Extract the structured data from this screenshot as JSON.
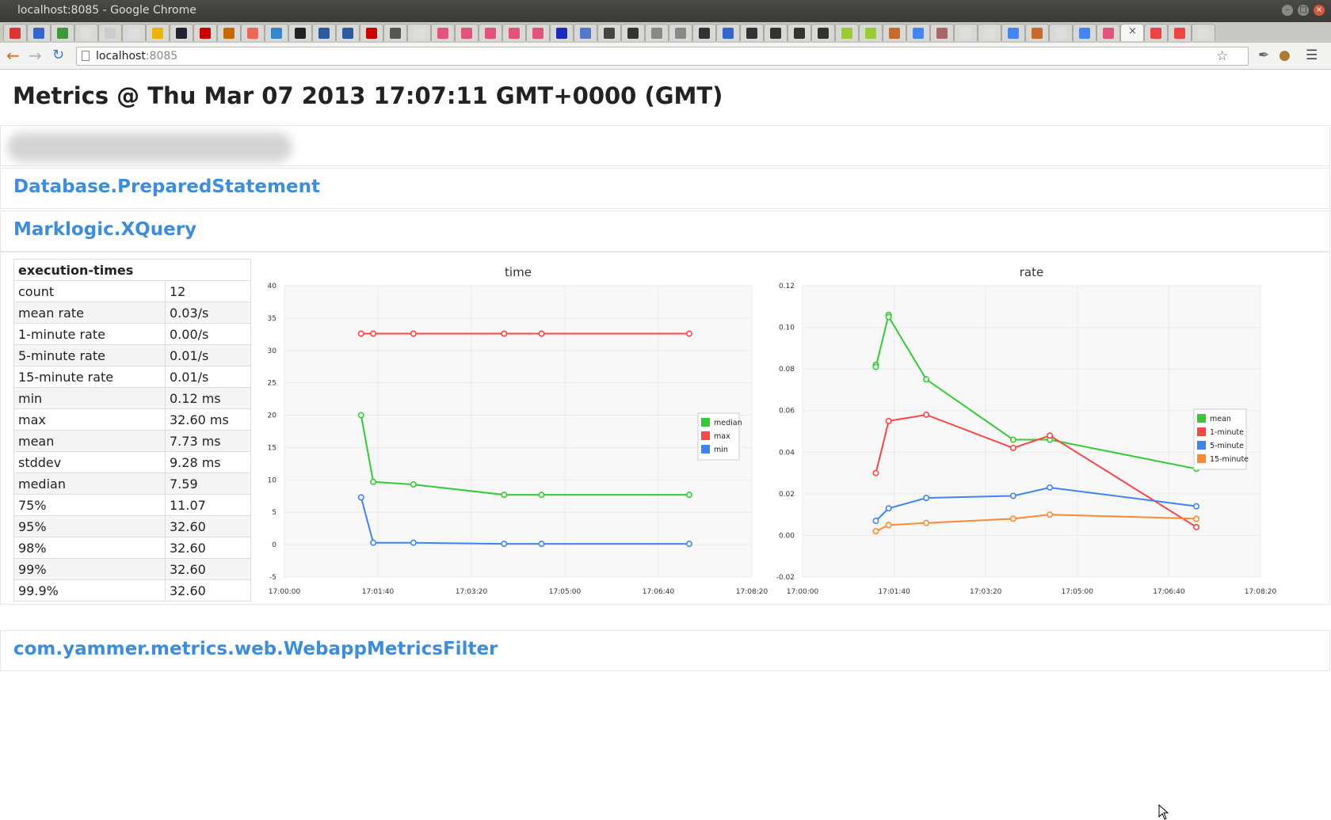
{
  "window": {
    "title": "localhost:8085 - Google Chrome"
  },
  "toolbar": {
    "url_host": "localhost",
    "url_port": ":8085",
    "back_icon": "back-arrow-icon",
    "forward_icon": "forward-arrow-icon",
    "reload_icon": "reload-icon"
  },
  "page": {
    "title": "Metrics @ Thu Mar 07 2013 17:07:11 GMT+0000 (GMT)",
    "sections": {
      "db": "Database.PreparedStatement",
      "marklogic": "Marklogic.XQuery",
      "webapp": "com.yammer.metrics.web.WebappMetricsFilter"
    }
  },
  "metrics_table": {
    "header": "execution-times",
    "rows": [
      {
        "k": "count",
        "v": "12"
      },
      {
        "k": "mean rate",
        "v": "0.03/s"
      },
      {
        "k": "1-minute rate",
        "v": "0.00/s"
      },
      {
        "k": "5-minute rate",
        "v": "0.01/s"
      },
      {
        "k": "15-minute rate",
        "v": "0.01/s"
      },
      {
        "k": "min",
        "v": "0.12 ms"
      },
      {
        "k": "max",
        "v": "32.60 ms"
      },
      {
        "k": "mean",
        "v": "7.73 ms"
      },
      {
        "k": "stddev",
        "v": "9.28 ms"
      },
      {
        "k": "median",
        "v": "7.59"
      },
      {
        "k": "75%",
        "v": "11.07"
      },
      {
        "k": "95%",
        "v": "32.60"
      },
      {
        "k": "98%",
        "v": "32.60"
      },
      {
        "k": "99%",
        "v": "32.60"
      },
      {
        "k": "99.9%",
        "v": "32.60"
      }
    ]
  },
  "chart_data": [
    {
      "type": "line",
      "title": "time",
      "xlabel": "",
      "ylabel": "",
      "x_ticks": [
        "17:00:00",
        "17:01:40",
        "17:03:20",
        "17:05:00",
        "17:06:40",
        "17:08:20"
      ],
      "xlim_seconds": [
        0,
        500
      ],
      "ylim": [
        -5,
        40
      ],
      "y_ticks": [
        -5,
        0,
        5,
        10,
        15,
        20,
        25,
        30,
        35,
        40
      ],
      "grid": true,
      "legend": "right",
      "series": [
        {
          "name": "median",
          "color": "#33cc33",
          "x": [
            82,
            95,
            138,
            235,
            275,
            433
          ],
          "y": [
            20,
            9.7,
            9.3,
            7.7,
            7.7,
            7.7
          ]
        },
        {
          "name": "max",
          "color": "#ff4444",
          "x": [
            82,
            95,
            138,
            235,
            275,
            433
          ],
          "y": [
            32.6,
            32.6,
            32.6,
            32.6,
            32.6,
            32.6
          ]
        },
        {
          "name": "min",
          "color": "#3d85f5",
          "x": [
            82,
            95,
            138,
            235,
            275,
            433
          ],
          "y": [
            7.3,
            0.3,
            0.3,
            0.12,
            0.12,
            0.12
          ]
        }
      ]
    },
    {
      "type": "line",
      "title": "rate",
      "xlabel": "",
      "ylabel": "",
      "x_ticks": [
        "17:00:00",
        "17:01:40",
        "17:03:20",
        "17:05:00",
        "17:06:40",
        "17:08:20"
      ],
      "xlim_seconds": [
        0,
        500
      ],
      "ylim": [
        -0.02,
        0.12
      ],
      "y_ticks": [
        "-0.02",
        "0.00",
        "0.02",
        "0.04",
        "0.06",
        "0.08",
        "0.10",
        "0.12"
      ],
      "grid": true,
      "legend": "right",
      "series": [
        {
          "name": "mean",
          "color": "#33cc33",
          "x": [
            80,
            80,
            94,
            94,
            135,
            230,
            270,
            430
          ],
          "y": [
            0.082,
            0.081,
            0.106,
            0.105,
            0.075,
            0.046,
            0.046,
            0.032
          ]
        },
        {
          "name": "1-minute",
          "color": "#ff4444",
          "x": [
            80,
            94,
            135,
            230,
            270,
            430
          ],
          "y": [
            0.03,
            0.055,
            0.058,
            0.042,
            0.048,
            0.004
          ]
        },
        {
          "name": "5-minute",
          "color": "#3d85f5",
          "x": [
            80,
            94,
            135,
            230,
            270,
            430
          ],
          "y": [
            0.007,
            0.013,
            0.018,
            0.019,
            0.023,
            0.014
          ]
        },
        {
          "name": "15-minute",
          "color": "#ff8833",
          "x": [
            80,
            94,
            135,
            230,
            270,
            430
          ],
          "y": [
            0.002,
            0.005,
            0.006,
            0.008,
            0.01,
            0.008
          ]
        }
      ]
    }
  ]
}
